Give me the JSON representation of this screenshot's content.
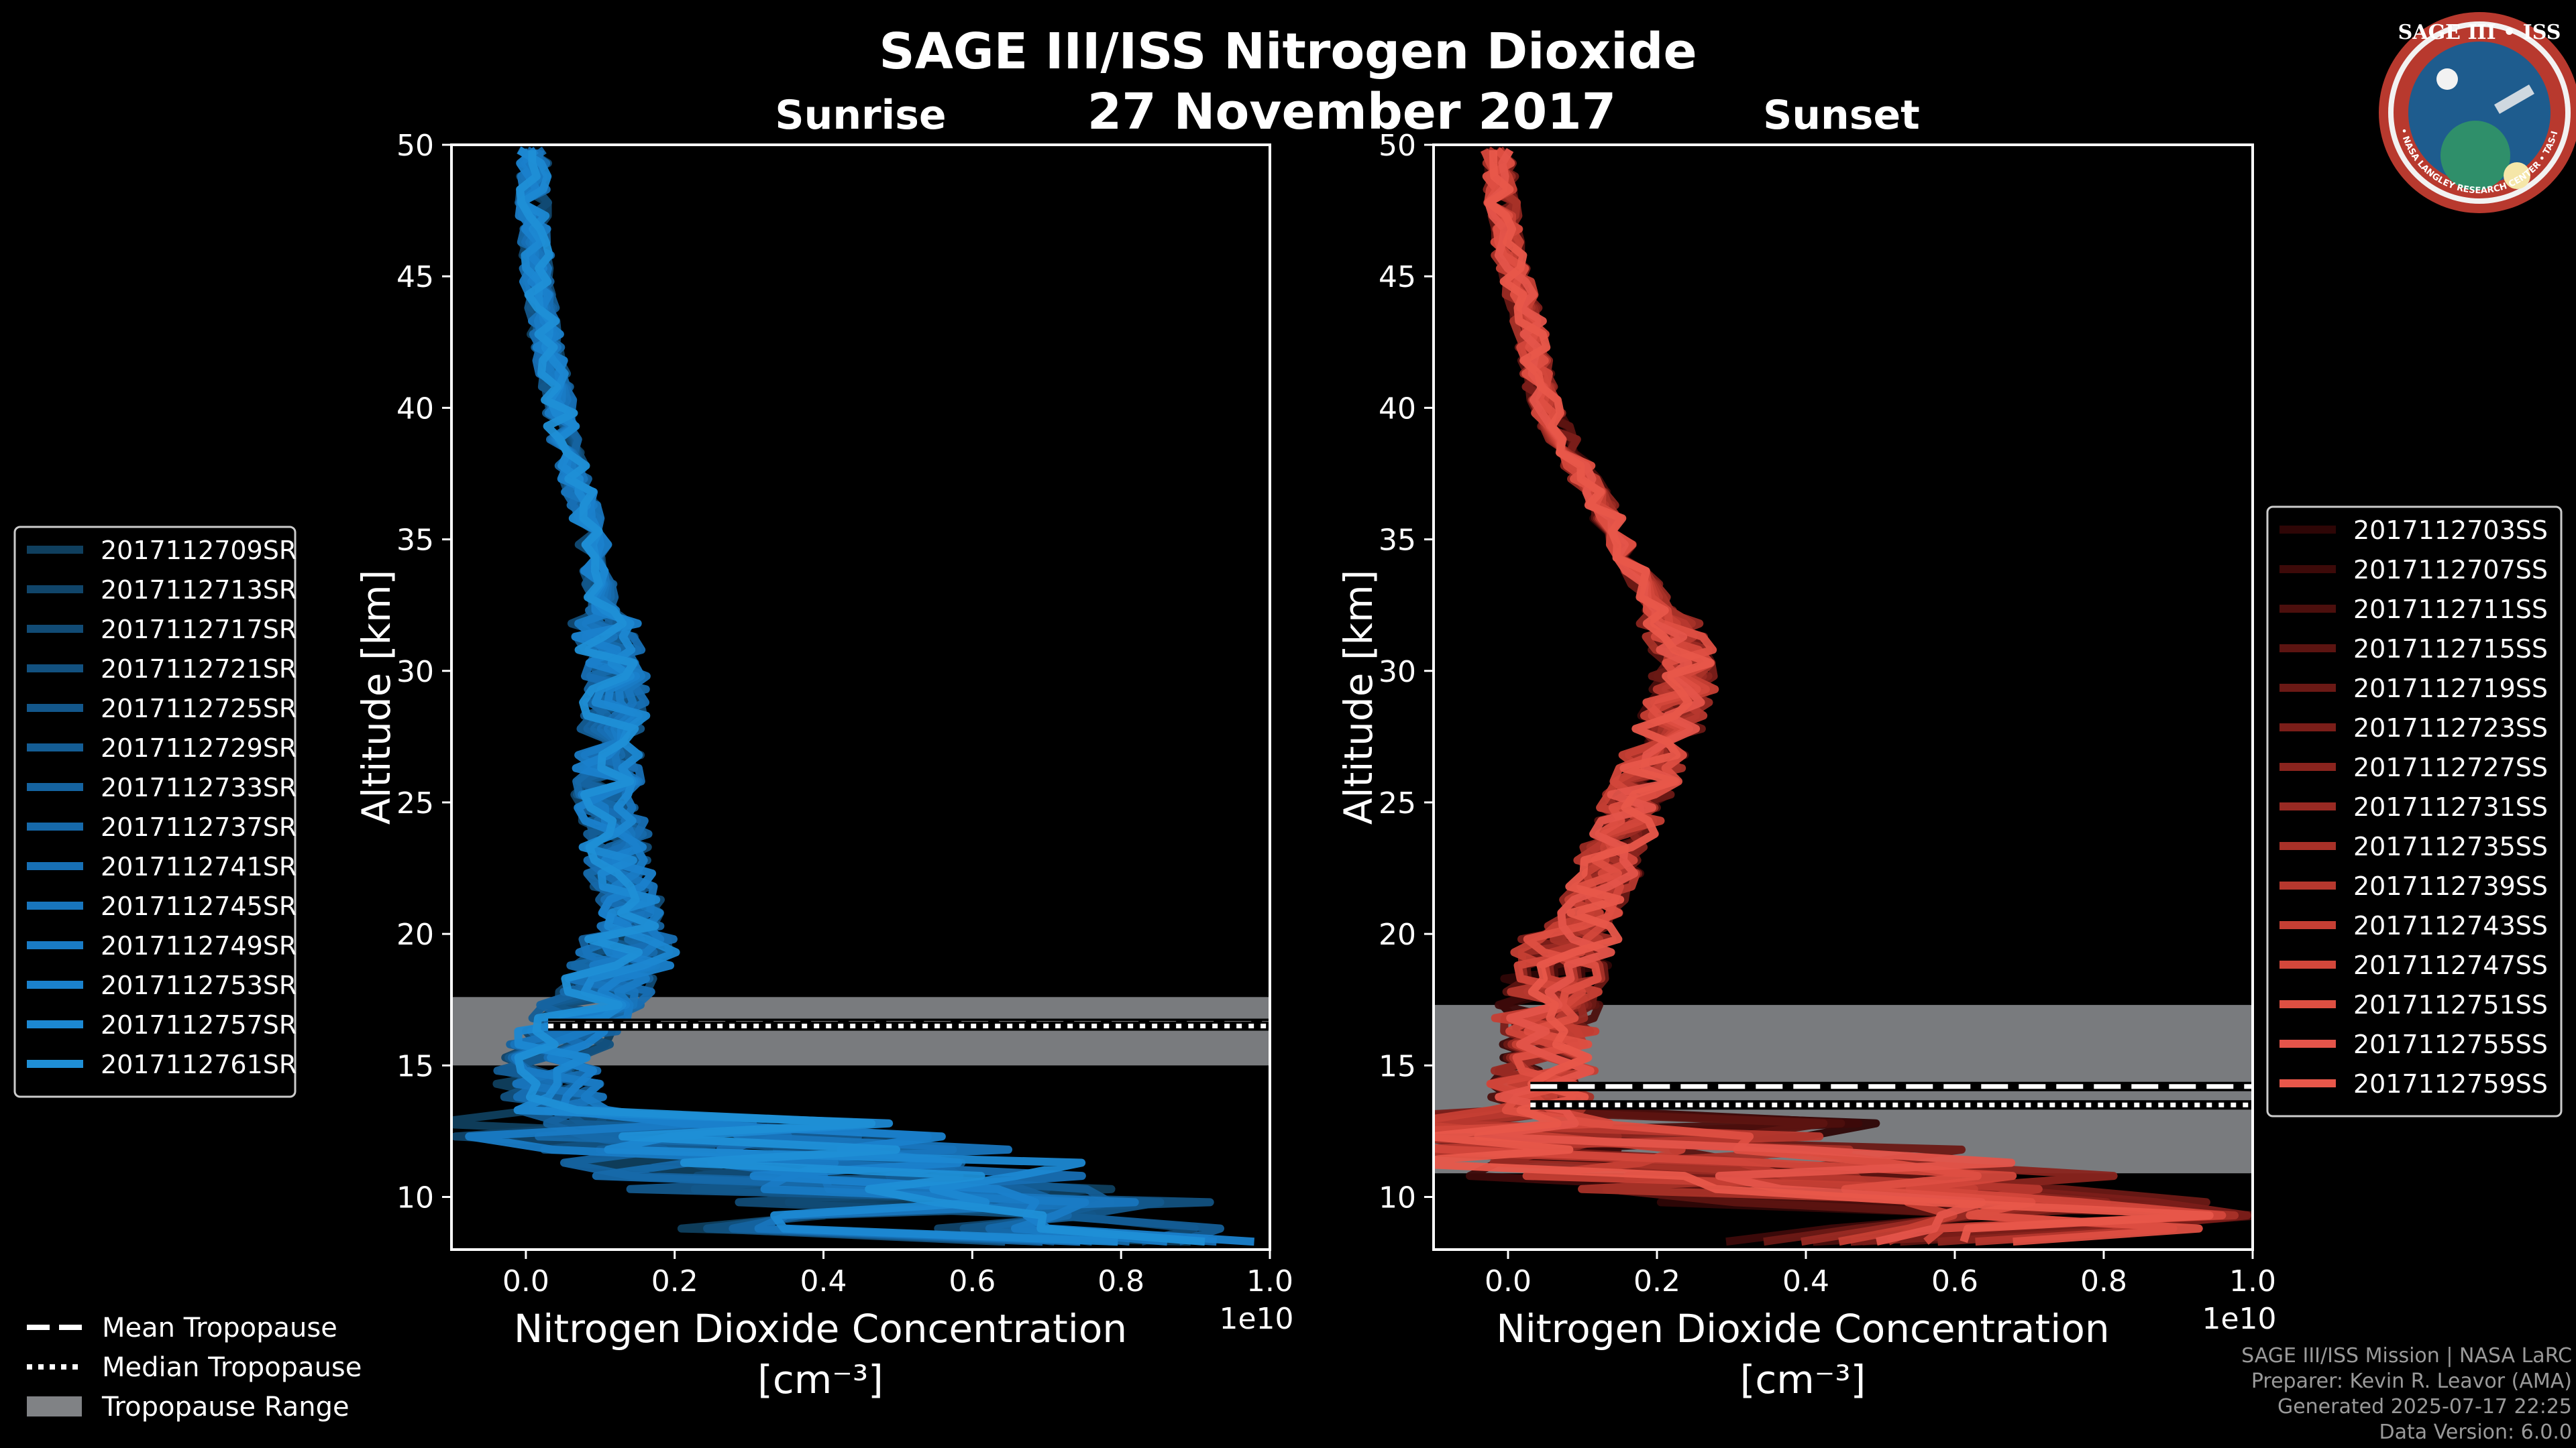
{
  "title": "SAGE III/ISS Nitrogen Dioxide",
  "date": "27 November 2017",
  "logo": {
    "text": "SAGE III • ISS",
    "ring_text": "BALL • NASA LANGLEY RESEARCH CENTER • TAS-I • ESA",
    "colors": [
      "#b8392e",
      "#1e5c8e",
      "#0f2b4d"
    ]
  },
  "colors": {
    "sunrise": "#1f8fd6",
    "sunset": "#e8574a",
    "tropopause_range": "#808285",
    "background": "#000000",
    "text": "#ffffff"
  },
  "credits": [
    "SAGE III/ISS Mission | NASA LaRC",
    "Preparer: Kevin R. Leavor (AMA)",
    "Generated 2025-07-17 22:25",
    "Data Version: 6.0.0"
  ],
  "tropo_legend": [
    {
      "key": "mean",
      "label": "Mean Tropopause"
    },
    {
      "key": "median",
      "label": "Median Tropopause"
    },
    {
      "key": "range",
      "label": "Tropopause Range"
    }
  ],
  "chart_data": [
    {
      "type": "line",
      "title": "Sunrise",
      "xlabel": "Nitrogen Dioxide Concentration",
      "xunit": "[cm⁻³]",
      "xscale_label": "1e10",
      "ylabel": "Altitude [km]",
      "xlim": [
        -0.1,
        1.0
      ],
      "ylim": [
        8,
        50
      ],
      "xticks": [
        0.0,
        0.2,
        0.4,
        0.6,
        0.8,
        1.0
      ],
      "xtick_labels": [
        "0.0",
        "0.2",
        "0.4",
        "0.6",
        "0.8",
        "1.0"
      ],
      "yticks": [
        10,
        15,
        20,
        25,
        30,
        35,
        40,
        45,
        50
      ],
      "ytick_labels": [
        "10",
        "15",
        "20",
        "25",
        "30",
        "35",
        "40",
        "45",
        "50"
      ],
      "legend_position": "left",
      "tropopause": {
        "mean": 16.6,
        "median": 16.5,
        "range": [
          15.0,
          17.6
        ]
      },
      "profile": {
        "altitude": [
          8.5,
          10,
          11,
          12,
          13,
          14,
          15,
          16,
          17,
          18,
          19,
          20,
          21,
          22,
          23,
          24,
          25,
          26,
          27,
          28,
          29,
          30,
          31,
          32,
          33,
          34,
          35,
          36,
          37,
          38,
          39,
          40,
          41,
          42,
          43,
          44,
          45,
          46,
          47,
          48,
          49,
          50
        ],
        "no2": [
          0.6,
          0.5,
          0.35,
          0.15,
          0.06,
          0.03,
          0.03,
          0.05,
          0.08,
          0.11,
          0.13,
          0.14,
          0.14,
          0.13,
          0.12,
          0.12,
          0.11,
          0.11,
          0.11,
          0.12,
          0.12,
          0.12,
          0.11,
          0.105,
          0.1,
          0.095,
          0.09,
          0.08,
          0.07,
          0.06,
          0.05,
          0.045,
          0.04,
          0.03,
          0.025,
          0.02,
          0.015,
          0.015,
          0.01,
          0.01,
          0.01,
          0.01
        ]
      },
      "series": [
        {
          "name": "2017112709SR",
          "color": "#0f3f5e"
        },
        {
          "name": "2017112713SR",
          "color": "#10456a"
        },
        {
          "name": "2017112717SR",
          "color": "#114b75"
        },
        {
          "name": "2017112721SR",
          "color": "#125180"
        },
        {
          "name": "2017112725SR",
          "color": "#13578b"
        },
        {
          "name": "2017112729SR",
          "color": "#145d95"
        },
        {
          "name": "2017112733SR",
          "color": "#1563a0"
        },
        {
          "name": "2017112737SR",
          "color": "#1669aa"
        },
        {
          "name": "2017112741SR",
          "color": "#176fb4"
        },
        {
          "name": "2017112745SR",
          "color": "#1875bd"
        },
        {
          "name": "2017112749SR",
          "color": "#197bc5"
        },
        {
          "name": "2017112753SR",
          "color": "#1a81cc"
        },
        {
          "name": "2017112757SR",
          "color": "#1c88d2"
        },
        {
          "name": "2017112761SR",
          "color": "#1f8fd6"
        }
      ]
    },
    {
      "type": "line",
      "title": "Sunset",
      "xlabel": "Nitrogen Dioxide Concentration",
      "xunit": "[cm⁻³]",
      "xscale_label": "1e10",
      "ylabel": "Altitude [km]",
      "xlim": [
        -0.1,
        1.0
      ],
      "ylim": [
        8,
        50
      ],
      "xticks": [
        0.0,
        0.2,
        0.4,
        0.6,
        0.8,
        1.0
      ],
      "xtick_labels": [
        "0.0",
        "0.2",
        "0.4",
        "0.6",
        "0.8",
        "1.0"
      ],
      "yticks": [
        10,
        15,
        20,
        25,
        30,
        35,
        40,
        45,
        50
      ],
      "ytick_labels": [
        "10",
        "15",
        "20",
        "25",
        "30",
        "35",
        "40",
        "45",
        "50"
      ],
      "legend_position": "right",
      "tropopause": {
        "mean": 14.2,
        "median": 13.5,
        "range": [
          10.9,
          17.3
        ]
      },
      "profile": {
        "altitude": [
          8.5,
          10,
          11,
          12,
          13,
          14,
          15,
          16,
          17,
          18,
          19,
          20,
          21,
          22,
          23,
          24,
          25,
          26,
          27,
          28,
          29,
          30,
          31,
          32,
          33,
          34,
          35,
          36,
          37,
          38,
          39,
          40,
          41,
          42,
          43,
          44,
          45,
          46,
          47,
          48,
          49,
          50
        ],
        "no2": [
          0.7,
          0.5,
          0.25,
          0.1,
          0.05,
          0.04,
          0.05,
          0.05,
          0.05,
          0.06,
          0.07,
          0.09,
          0.11,
          0.13,
          0.14,
          0.16,
          0.17,
          0.19,
          0.2,
          0.22,
          0.23,
          0.24,
          0.23,
          0.21,
          0.19,
          0.17,
          0.15,
          0.13,
          0.11,
          0.09,
          0.07,
          0.05,
          0.04,
          0.035,
          0.03,
          0.02,
          0.01,
          0.0,
          0.0,
          -0.01,
          -0.01,
          -0.015
        ]
      },
      "series": [
        {
          "name": "2017112703SS",
          "color": "#2e0606"
        },
        {
          "name": "2017112707SS",
          "color": "#3d0a09"
        },
        {
          "name": "2017112711SS",
          "color": "#4c0f0d"
        },
        {
          "name": "2017112715SS",
          "color": "#5c1411"
        },
        {
          "name": "2017112719SS",
          "color": "#6b1915"
        },
        {
          "name": "2017112723SS",
          "color": "#7b1e19"
        },
        {
          "name": "2017112727SS",
          "color": "#8a241e"
        },
        {
          "name": "2017112731SS",
          "color": "#992a23"
        },
        {
          "name": "2017112735SS",
          "color": "#a83128"
        },
        {
          "name": "2017112739SS",
          "color": "#b7382e"
        },
        {
          "name": "2017112743SS",
          "color": "#c63f34"
        },
        {
          "name": "2017112747SS",
          "color": "#d3473b"
        },
        {
          "name": "2017112751SS",
          "color": "#de4f42"
        },
        {
          "name": "2017112755SS",
          "color": "#e4544a"
        },
        {
          "name": "2017112759SS",
          "color": "#e8574a"
        }
      ]
    }
  ]
}
